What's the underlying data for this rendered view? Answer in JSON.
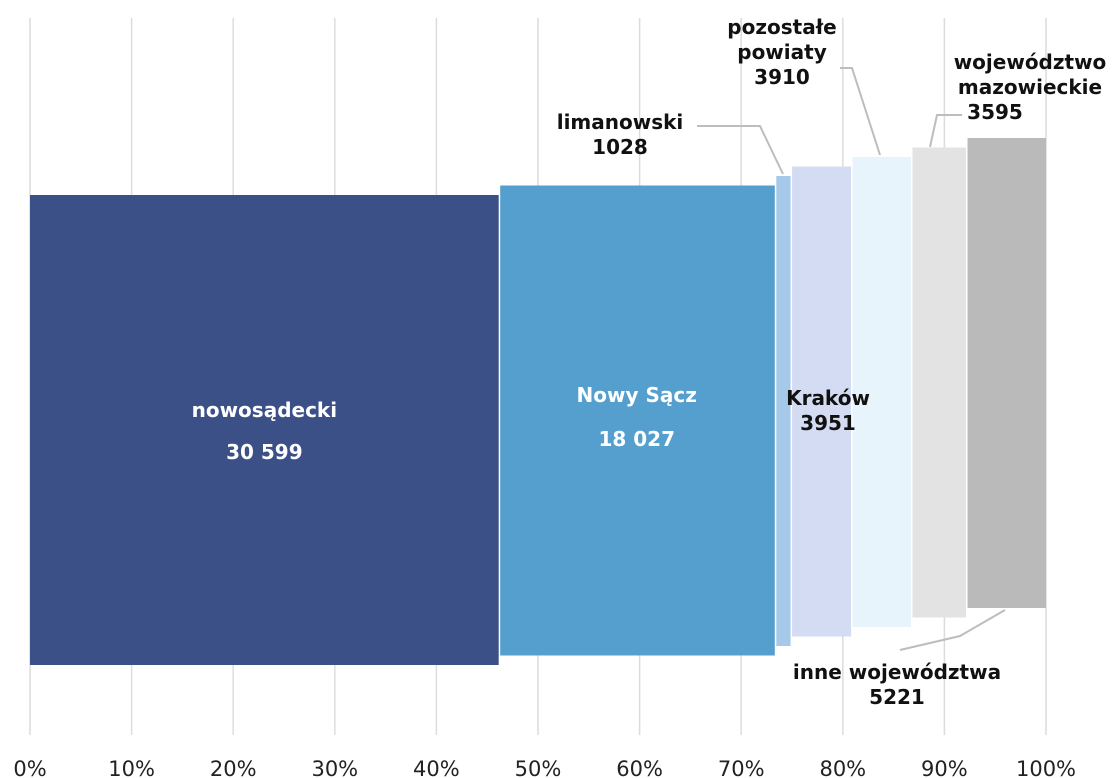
{
  "chart_data": {
    "type": "mosaic",
    "categories": [
      "nowosądecki",
      "Nowy Sącz",
      "limanowski",
      "Kraków",
      "pozostałe powiaty",
      "województwo mazowieckie",
      "inne województwa"
    ],
    "values": [
      30599,
      18027,
      1028,
      3951,
      3910,
      3595,
      5221
    ],
    "value_labels": [
      "30 599",
      "18 027",
      "1028",
      "3951",
      "3910",
      "3595",
      "5221"
    ],
    "colors": [
      "#3b5087",
      "#559fcf",
      "#a6c9ea",
      "#d3dcf2",
      "#e8f4fc",
      "#e3e3e3",
      "#bababa"
    ],
    "xlim": [
      0,
      100
    ],
    "xticks": [
      {
        "value": 0,
        "label": "0%"
      },
      {
        "value": 10,
        "label": "10%"
      },
      {
        "value": 20,
        "label": "20%"
      },
      {
        "value": 30,
        "label": "30%"
      },
      {
        "value": 40,
        "label": "40%"
      },
      {
        "value": 50,
        "label": "50%"
      },
      {
        "value": 60,
        "label": "60%"
      },
      {
        "value": 70,
        "label": "70%"
      },
      {
        "value": 80,
        "label": "80%"
      },
      {
        "value": 90,
        "label": "90%"
      },
      {
        "value": 100,
        "label": "100%"
      }
    ],
    "grid": true
  }
}
